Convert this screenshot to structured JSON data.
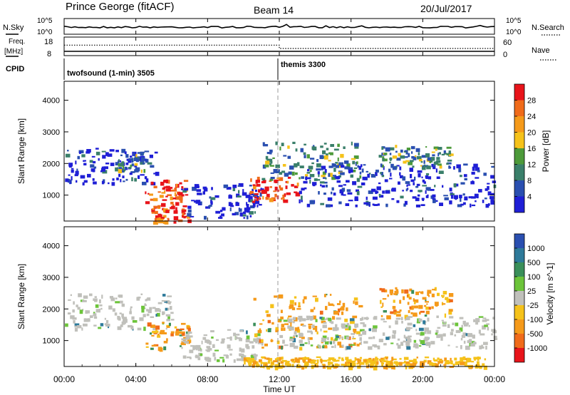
{
  "header": {
    "title": "Prince George (fitACF)",
    "beam": "Beam 14",
    "date": "20/Jul/2017"
  },
  "panels": {
    "nsky": {
      "left_label": "N.Sky",
      "left_ticks": [
        "10^5",
        "10^0"
      ],
      "right_label": "N.Search",
      "right_ticks": [
        "10^5",
        "10^0"
      ]
    },
    "freq": {
      "left_label_1": "Freq.",
      "left_label_2": "[MHz]",
      "left_ticks": [
        "18",
        "8"
      ],
      "right_label": "Nave",
      "right_ticks": [
        "60",
        "0"
      ]
    },
    "cpid": {
      "label": "CPID",
      "programs": [
        {
          "name": "twofsound (1-min) 3505",
          "start": "00:00"
        },
        {
          "name": "themis 3300",
          "start": "12:00"
        }
      ]
    }
  },
  "colors": {
    "power": [
      "#1f1fd6",
      "#2a4fb0",
      "#3a7f6a",
      "#4d9a3a",
      "#f5c21a",
      "#f59a1a",
      "#f06b1a",
      "#e8141a"
    ],
    "velocity": [
      "#2a4fb0",
      "#2e7a9a",
      "#3a8f5a",
      "#6cc43a",
      "#c0c0bb",
      "#f5c21a",
      "#f59a1a",
      "#f06b1a",
      "#e8141a"
    ]
  },
  "chart_data": [
    {
      "type": "line",
      "panel": "N.Sky / N.Search",
      "x_range": [
        "00:00",
        "24:00"
      ],
      "y_scale": "log",
      "y_range": [
        1,
        100000
      ],
      "series": [
        {
          "name": "N.Sky",
          "style": "solid",
          "values": [
            {
              "x": "00:00",
              "y": 300
            },
            {
              "x": "12:00",
              "y": 400
            },
            {
              "x": "24:00",
              "y": 350
            }
          ]
        },
        {
          "name": "N.Search",
          "style": "dotted",
          "values": []
        }
      ]
    },
    {
      "type": "line",
      "panel": "Freq. / Nave",
      "x_range": [
        "00:00",
        "24:00"
      ],
      "y_range_left": [
        8,
        18
      ],
      "y_range_right": [
        0,
        60
      ],
      "series": [
        {
          "name": "Freq.",
          "style": "solid",
          "values": [
            {
              "x": "00:00",
              "y": 10.3
            },
            {
              "x": "24:00",
              "y": 10.3
            }
          ]
        },
        {
          "name": "Nave",
          "style": "dotted",
          "values": [
            {
              "x": "00:00",
              "y": 34
            },
            {
              "x": "12:00",
              "y": 34
            },
            {
              "x": "12:00",
              "y": 23
            },
            {
              "x": "24:00",
              "y": 23
            }
          ]
        }
      ]
    },
    {
      "type": "heatmap",
      "panel": "Power",
      "xlabel": "",
      "ylabel": "Slant Range [km]",
      "x_range_hours": [
        0,
        24
      ],
      "ylim": [
        180,
        4600
      ],
      "yticks": [
        "1000",
        "2000",
        "3000",
        "4000"
      ],
      "colorbar": {
        "label": "Power [dB]",
        "ticks": [
          "4",
          "8",
          "12",
          "16",
          "20",
          "24",
          "28"
        ]
      },
      "regions": [
        {
          "t": [
            0.0,
            5.2
          ],
          "r": [
            1400,
            2500
          ],
          "level": "low"
        },
        {
          "t": [
            3.0,
            4.5
          ],
          "r": [
            1800,
            2400
          ],
          "level": "mid"
        },
        {
          "t": [
            4.5,
            6.8
          ],
          "r": [
            700,
            1500
          ],
          "level": "high"
        },
        {
          "t": [
            4.8,
            7.0
          ],
          "r": [
            180,
            700
          ],
          "level": "high"
        },
        {
          "t": [
            6.5,
            11.0
          ],
          "r": [
            300,
            1400
          ],
          "level": "low"
        },
        {
          "t": [
            10.3,
            13.0
          ],
          "r": [
            800,
            1600
          ],
          "level": "high"
        },
        {
          "t": [
            11.0,
            16.5
          ],
          "r": [
            1500,
            2700
          ],
          "level": "mid"
        },
        {
          "t": [
            13.0,
            24.0
          ],
          "r": [
            700,
            2000
          ],
          "level": "low"
        },
        {
          "t": [
            17.5,
            21.5
          ],
          "r": [
            1900,
            2600
          ],
          "level": "mid"
        }
      ]
    },
    {
      "type": "heatmap",
      "panel": "Velocity",
      "xlabel": "Time UT",
      "ylabel": "Slant Range [km]",
      "x_range_hours": [
        0,
        24
      ],
      "xticks": [
        "00:00",
        "04:00",
        "08:00",
        "12:00",
        "16:00",
        "20:00",
        "00:00"
      ],
      "ylim": [
        180,
        4600
      ],
      "yticks": [
        "1000",
        "2000",
        "3000",
        "4000"
      ],
      "colorbar": {
        "label": "Velocity [m s^-1]",
        "ticks": [
          "1000",
          "500",
          "100",
          "25",
          "-25",
          "-100",
          "-500",
          "-1000"
        ]
      },
      "regions": [
        {
          "t": [
            0.0,
            6.0
          ],
          "r": [
            1400,
            2500
          ],
          "level": "near-zero"
        },
        {
          "t": [
            4.5,
            7.0
          ],
          "r": [
            700,
            1600
          ],
          "level": "negative"
        },
        {
          "t": [
            6.5,
            11.0
          ],
          "r": [
            400,
            1400
          ],
          "level": "near-zero"
        },
        {
          "t": [
            10.5,
            16.5
          ],
          "r": [
            800,
            2500
          ],
          "level": "negative"
        },
        {
          "t": [
            10.0,
            23.5
          ],
          "r": [
            180,
            500
          ],
          "level": "negative-small"
        },
        {
          "t": [
            17.5,
            21.5
          ],
          "r": [
            1800,
            2700
          ],
          "level": "negative"
        },
        {
          "t": [
            12.0,
            24.0
          ],
          "r": [
            800,
            1800
          ],
          "level": "near-zero"
        }
      ]
    }
  ]
}
